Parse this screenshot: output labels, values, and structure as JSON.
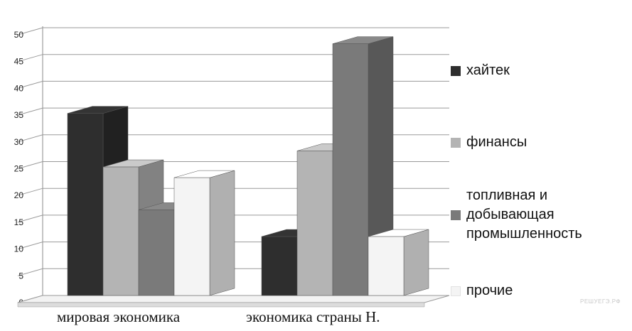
{
  "chart_data": {
    "type": "bar",
    "title": "",
    "xlabel": "",
    "ylabel": "",
    "ylim": [
      0,
      50
    ],
    "yticks": [
      "0",
      "5",
      "10",
      "15",
      "20",
      "25",
      "30",
      "35",
      "40",
      "45",
      "50"
    ],
    "grid": true,
    "three_d": true,
    "legend_position": "right",
    "categories": [
      "мировая экономика",
      "экономика страны Н."
    ],
    "series": [
      {
        "name": "хайтек",
        "values": [
          34,
          11
        ],
        "color": "#2e2e2e"
      },
      {
        "name": "финансы",
        "values": [
          24,
          27
        ],
        "color": "#b4b4b4"
      },
      {
        "name": "топливная и\nдобывающая\nпромышленность",
        "values": [
          16,
          47
        ],
        "color": "#7a7a7a"
      },
      {
        "name": "прочие",
        "values": [
          22,
          11
        ],
        "color": "#f4f4f4"
      }
    ]
  },
  "watermark": "РЕШУЕГЭ.РФ"
}
